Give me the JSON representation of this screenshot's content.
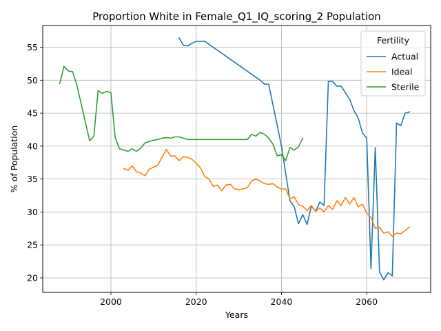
{
  "chart_data": {
    "type": "line",
    "title": "Proportion White in Female_Q1_IQ_scoring_2 Population",
    "xlabel": "Years",
    "ylabel": "% of Population",
    "xlim": [
      1984,
      2075
    ],
    "ylim": [
      17.8,
      58.3
    ],
    "xticks": [
      2000,
      2020,
      2040,
      2060
    ],
    "yticks": [
      20,
      25,
      30,
      35,
      40,
      45,
      50,
      55
    ],
    "grid": true,
    "legend": {
      "title": "Fertility",
      "placement": "top-right"
    },
    "series": [
      {
        "name": "Actual",
        "color": "#1f77b4",
        "x": [
          2016,
          2017,
          2018,
          2019,
          2020,
          2021,
          2022,
          2035,
          2036,
          2037,
          2040,
          2042,
          2043,
          2044,
          2045,
          2046,
          2047,
          2048,
          2049,
          2050,
          2051,
          2052,
          2053,
          2054,
          2056,
          2057,
          2058,
          2059,
          2060,
          2061,
          2062,
          2063,
          2064,
          2065,
          2066,
          2067,
          2068,
          2069,
          2070
        ],
        "y": [
          56.4,
          55.3,
          55.2,
          55.6,
          55.9,
          55.9,
          55.9,
          50.0,
          49.4,
          49.4,
          40.0,
          31.7,
          30.8,
          28.2,
          29.6,
          28.1,
          30.9,
          30.1,
          31.5,
          31.0,
          49.8,
          49.8,
          49.1,
          49.1,
          47.1,
          45.4,
          44.3,
          42.0,
          41.2,
          21.4,
          39.8,
          20.9,
          19.7,
          20.8,
          20.3,
          43.5,
          43.1,
          45.0,
          45.2
        ]
      },
      {
        "name": "Ideal",
        "color": "#ff7f0e",
        "x": [
          2003,
          2004,
          2005,
          2006,
          2007,
          2008,
          2009,
          2010,
          2011,
          2012,
          2013,
          2014,
          2015,
          2016,
          2017,
          2018,
          2019,
          2020,
          2021,
          2022,
          2023,
          2024,
          2025,
          2026,
          2027,
          2028,
          2029,
          2030,
          2031,
          2032,
          2033,
          2034,
          2035,
          2036,
          2037,
          2038,
          2039,
          2040,
          2041,
          2042,
          2043,
          2044,
          2045,
          2046,
          2047,
          2048,
          2049,
          2050,
          2051,
          2052,
          2053,
          2054,
          2055,
          2056,
          2057,
          2058,
          2059,
          2060,
          2061,
          2062,
          2063,
          2064,
          2065,
          2066,
          2067,
          2068,
          2069,
          2070
        ],
        "y": [
          36.6,
          36.3,
          37.0,
          36.1,
          35.9,
          35.5,
          36.5,
          36.8,
          37.1,
          38.3,
          39.5,
          38.5,
          38.5,
          37.8,
          38.4,
          38.3,
          38.0,
          37.4,
          36.7,
          35.4,
          35.0,
          33.9,
          34.1,
          33.2,
          34.1,
          34.2,
          33.5,
          33.4,
          33.5,
          33.7,
          34.7,
          35.0,
          34.7,
          34.3,
          34.2,
          34.3,
          33.8,
          33.5,
          33.5,
          32.0,
          32.3,
          31.1,
          30.9,
          30.2,
          31.0,
          30.1,
          30.6,
          30.0,
          31.0,
          30.4,
          31.7,
          31.0,
          32.2,
          31.2,
          32.2,
          30.8,
          31.2,
          29.8,
          29.2,
          27.5,
          27.7,
          26.8,
          27.0,
          26.3,
          26.8,
          26.7,
          27.2,
          27.7
        ]
      },
      {
        "name": "Sterile",
        "color": "#2ca02c",
        "x": [
          1988,
          1989,
          1990,
          1991,
          1992,
          1995,
          1996,
          1997,
          1998,
          1999,
          2000,
          2001,
          2002,
          2003,
          2004,
          2005,
          2006,
          2007,
          2008,
          2009,
          2010,
          2011,
          2012,
          2013,
          2014,
          2015,
          2016,
          2017,
          2018,
          2019,
          2020,
          2025,
          2030,
          2031,
          2032,
          2033,
          2034,
          2035,
          2036,
          2037,
          2038,
          2039,
          2040,
          2041,
          2042,
          2043,
          2044,
          2045
        ],
        "y": [
          49.5,
          52.1,
          51.4,
          51.3,
          49.3,
          40.8,
          41.5,
          48.4,
          48.0,
          48.3,
          48.1,
          41.3,
          39.6,
          39.4,
          39.2,
          39.6,
          39.2,
          39.7,
          40.5,
          40.7,
          40.9,
          41.0,
          41.2,
          41.3,
          41.2,
          41.4,
          41.4,
          41.2,
          41.0,
          41.0,
          41.0,
          41.0,
          41.0,
          41.0,
          41.0,
          41.8,
          41.5,
          42.1,
          41.8,
          41.2,
          40.3,
          38.5,
          38.7,
          37.8,
          39.8,
          39.4,
          39.9,
          41.2
        ]
      }
    ]
  }
}
